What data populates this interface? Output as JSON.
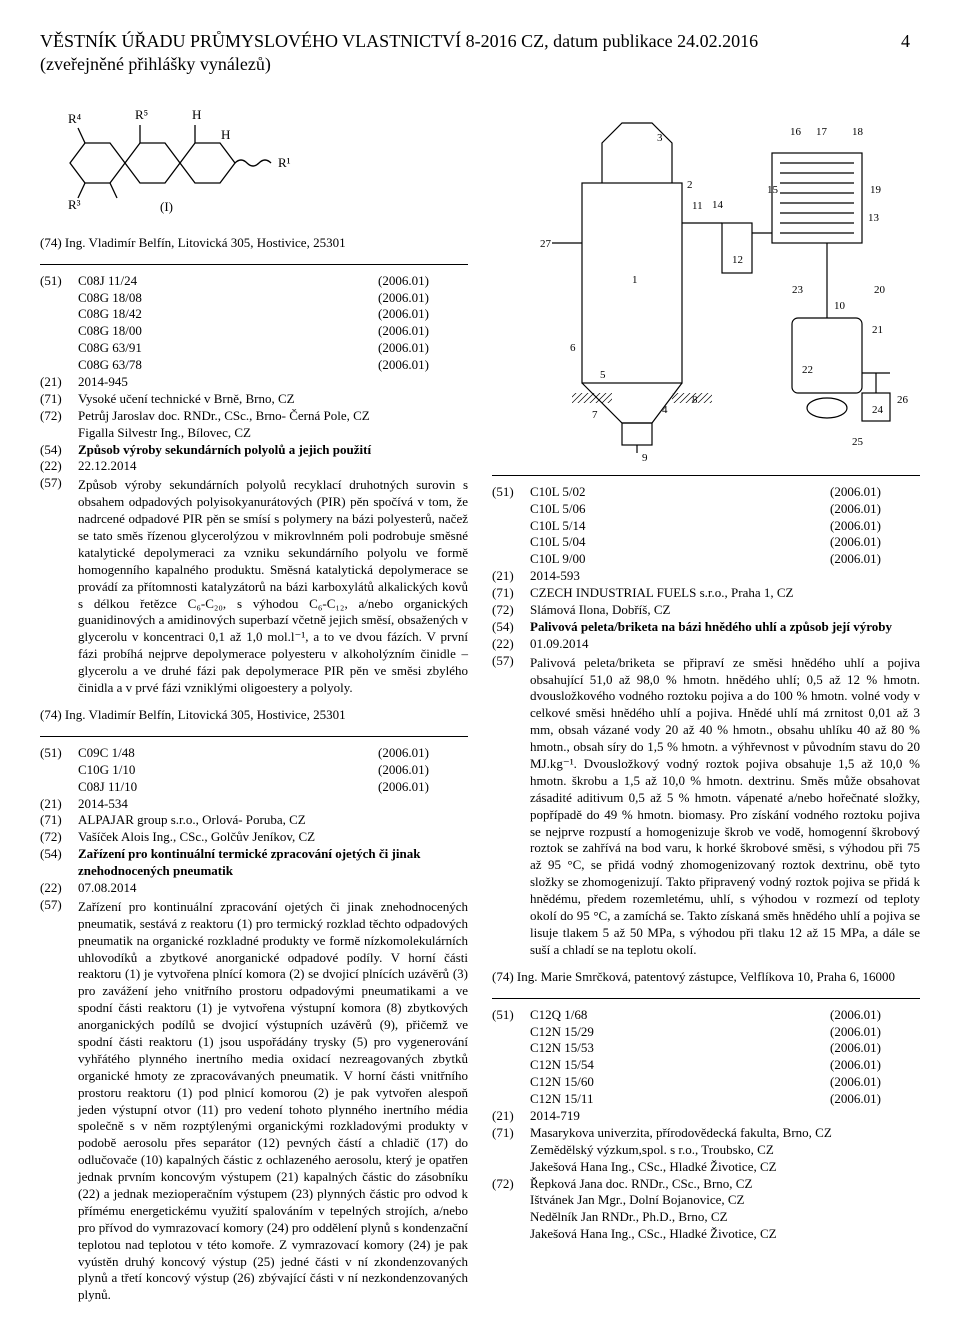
{
  "header": {
    "line1": "VĚSTNÍK ÚŘADU PRŮMYSLOVÉHO VLASTNICTVÍ 8-2016 CZ, datum publikace 24.02.2016",
    "line2": "(zveřejněné přihlášky vynálezů)",
    "page": "4"
  },
  "chemical_figure": {
    "labels": [
      "R⁵",
      "H",
      "H",
      "R¹",
      "R³",
      "R⁴",
      "(I)"
    ]
  },
  "left": {
    "repr_top": "(74)   Ing. Vladimír Belfín, Litovická 305, Hostivice, 25301",
    "entry1": {
      "codes": [
        {
          "tag": "(51)",
          "label": "C08J 11/24",
          "sub": "(2006.01)"
        },
        {
          "tag": "",
          "label": "C08G 18/08",
          "sub": "(2006.01)"
        },
        {
          "tag": "",
          "label": "C08G 18/42",
          "sub": "(2006.01)"
        },
        {
          "tag": "",
          "label": "C08G 18/00",
          "sub": "(2006.01)"
        },
        {
          "tag": "",
          "label": "C08G 63/91",
          "sub": "(2006.01)"
        },
        {
          "tag": "",
          "label": "C08G 63/78",
          "sub": "(2006.01)"
        }
      ],
      "app": {
        "tag": "(21)",
        "val": "2014-945"
      },
      "applicant": {
        "tag": "(71)",
        "val": "Vysoké učení technické v Brně, Brno, CZ"
      },
      "inventors": [
        {
          "tag": "(72)",
          "val": "Petrůj Jaroslav doc. RNDr., CSc., Brno- Černá Pole, CZ"
        },
        {
          "tag": "",
          "val": "Figalla Silvestr Ing., Bílovec, CZ"
        }
      ],
      "title": {
        "tag": "(54)",
        "val": "Způsob výroby sekundárních polyolů a jejich použití"
      },
      "date": {
        "tag": "(22)",
        "val": "22.12.2014"
      },
      "abstract": {
        "tag": "(57)",
        "val": "Způsob výroby sekundárních polyolů recyklací druhotných surovin s obsahem odpadových polyisokyanurátových (PIR) pěn spočívá v tom, že nadrcené odpadové PIR pěn se smísí s polymery na bázi polyesterů, načež se tato směs řízenou glycerolýzou v mikrovlnném poli podrobuje směsné katalytické depolymeraci za vzniku sekundárního polyolu ve formě homogenního kapalného produktu. Směsná katalytická depolymerace se provádí za přítomnosti katalyzátorů na bázi karboxylátů alkalických kovů s délkou řetězce C₆-C₂₀, s výhodou C₆-C₁₂, a/nebo organických guanidinových a amidinových superbazí včetně jejich směsí, obsažených v glycerolu v koncentraci 0,1 až 1,0 mol.l⁻¹, a to ve dvou fázích. V první fázi probíhá nejprve depolymerace polyesteru v alkoholýzním činidle – glycerolu a ve druhé fázi pak depolymerace PIR pěn ve směsi zbylého činidla a v prvé fázi vzniklými oligoestery a polyoly."
      },
      "repr": "(74)   Ing. Vladimír Belfín, Litovická 305, Hostivice, 25301"
    },
    "entry2": {
      "codes": [
        {
          "tag": "(51)",
          "label": "C09C 1/48",
          "sub": "(2006.01)"
        },
        {
          "tag": "",
          "label": "C10G 1/10",
          "sub": "(2006.01)"
        },
        {
          "tag": "",
          "label": "C08J 11/10",
          "sub": "(2006.01)"
        }
      ],
      "app": {
        "tag": "(21)",
        "val": "2014-534"
      },
      "applicant": {
        "tag": "(71)",
        "val": "ALPAJAR group s.r.o., Orlová- Poruba, CZ"
      },
      "inventors": [
        {
          "tag": "(72)",
          "val": "Vašíček Alois Ing., CSc., Golčův Jeníkov, CZ"
        }
      ],
      "title": {
        "tag": "(54)",
        "val": "Zařízení pro kontinuální termické zpracování ojetých či jinak znehodnocených pneumatik"
      },
      "date": {
        "tag": "(22)",
        "val": "07.08.2014"
      },
      "abstract": {
        "tag": "(57)",
        "val": "Zařízení pro kontinuální zpracování ojetých či jinak znehodnocených pneumatik, sestává z reaktoru (1) pro termický rozklad těchto odpadových pneumatik na organické rozkladné produkty ve formě nízkomolekulárních uhlovodíků a zbytkové anorganické odpadové podíly. V horní části reaktoru (1) je vytvořena plnící komora (2) se dvojicí plnících uzávěrů (3) pro zavážení jeho vnitřního prostoru odpadovými pneumatikami a ve spodní části reaktoru (1) je vytvořena výstupní komora (8) zbytkových anorganických podílů se dvojicí výstupních uzávěrů (9), přičemž ve spodní části reaktoru (1) jsou uspořádány trysky (5) pro vygenerování vyhřátého plynného inertního media oxidací nezreagovaných zbytků organické hmoty ze zpracovávaných pneumatik. V horní části vnitřního prostoru reaktoru (1) pod plnicí komorou (2) je pak vytvořen alespoň jeden výstupní otvor (11) pro vedení tohoto plynného inertního média společně s v něm rozptýlenými organickými rozkladovými produkty v podobě aerosolu přes separátor (12) pevných částí a chladič (17) do odlučovače (10) kapalných částic z ochlazeného aerosolu, který je opatřen jednak prvním koncovým výstupem (21) kapalných částic do zásobníku (22) a jednak mezioperačním výstupem (23) plynných částic pro odvod k přímému energetickému využití spalováním v tepelných strojích, a/nebo pro přívod do vymrazovací komory (24) pro oddělení plynů s kondenzační teplotou nad teplotou v této komoře. Z vymrazovací komory (24) je pak vyústěn druhý koncový výstup (25) jedné části v ní zkondenzovaných plynů a třetí koncový výstup (26) zbývající části v ní nezkondenzovaných plynů."
      }
    }
  },
  "tech_figure": {
    "labels": [
      "1",
      "2",
      "3",
      "4",
      "5",
      "6",
      "7",
      "8",
      "9",
      "10",
      "11",
      "12",
      "13",
      "14",
      "15",
      "16",
      "17",
      "18",
      "19",
      "20",
      "21",
      "22",
      "23",
      "24",
      "25",
      "26",
      "27"
    ]
  },
  "right": {
    "entry1": {
      "codes": [
        {
          "tag": "(51)",
          "label": "C10L 5/02",
          "sub": "(2006.01)"
        },
        {
          "tag": "",
          "label": "C10L 5/06",
          "sub": "(2006.01)"
        },
        {
          "tag": "",
          "label": "C10L 5/14",
          "sub": "(2006.01)"
        },
        {
          "tag": "",
          "label": "C10L 5/04",
          "sub": "(2006.01)"
        },
        {
          "tag": "",
          "label": "C10L 9/00",
          "sub": "(2006.01)"
        }
      ],
      "app": {
        "tag": "(21)",
        "val": "2014-593"
      },
      "applicant": {
        "tag": "(71)",
        "val": "CZECH INDUSTRIAL FUELS s.r.o., Praha 1, CZ"
      },
      "inventors": [
        {
          "tag": "(72)",
          "val": "Slámová Ilona, Dobříš, CZ"
        }
      ],
      "title": {
        "tag": "(54)",
        "val": "Palivová peleta/briketa na bázi hnědého uhlí a způsob její výroby"
      },
      "date": {
        "tag": "(22)",
        "val": "01.09.2014"
      },
      "abstract": {
        "tag": "(57)",
        "val": "Palivová peleta/briketa se připraví ze směsi hnědého uhlí a pojiva obsahující 51,0 až 98,0 % hmotn. hnědého uhlí; 0,5 až 12 % hmotn. dvousložkového vodného roztoku pojiva a do 100 % hmotn. volné vody v celkové směsi hnědého uhlí a pojiva. Hnědé uhlí má zrnitost 0,01 až 3 mm, obsah vázané vody 20 až 40 % hmotn., obsahu uhlíku 40 až 80 % hmotn., obsah síry do 1,5 % hmotn. a výhřevnost v původním stavu do 20 MJ.kg⁻¹. Dvousložkový vodný roztok pojiva obsahuje 1,5 až 10,0 % hmotn. škrobu a 1,5 až 10,0 % hmotn. dextrinu. Směs může obsahovat zásadité aditivum 0,5 až 5 % hmotn. vápenaté a/nebo hořečnaté složky, popřípadě do 49 % hmotn. biomasy. Pro získání vodného roztoku pojiva se nejprve rozpustí a homogenizuje škrob ve vodě, homogenní škrobový roztok se zahřívá na bod varu, k horké škrobové směsi, s výhodou při 75 až 95 °C, se přidá vodný zhomogenizovaný roztok dextrinu, obě tyto složky se zhomogenizují. Takto připravený vodný roztok pojiva se přidá k hnědému, předem rozemletému, uhlí, s výhodou v rozmezí od teploty okolí do 95 °C, a zamíchá se. Takto získaná směs hnědého uhlí a pojiva se lisuje tlakem 5 až 50 MPa, s výhodou při tlaku 12 až 15 MPa, a dále se suší a chladí se na teplotu okolí."
      },
      "repr": "(74)   Ing. Marie Smrčková, patentový zástupce, Velflíkova 10, Praha 6, 16000"
    },
    "entry2": {
      "codes": [
        {
          "tag": "(51)",
          "label": "C12Q 1/68",
          "sub": "(2006.01)"
        },
        {
          "tag": "",
          "label": "C12N 15/29",
          "sub": "(2006.01)"
        },
        {
          "tag": "",
          "label": "C12N 15/53",
          "sub": "(2006.01)"
        },
        {
          "tag": "",
          "label": "C12N 15/54",
          "sub": "(2006.01)"
        },
        {
          "tag": "",
          "label": "C12N 15/60",
          "sub": "(2006.01)"
        },
        {
          "tag": "",
          "label": "C12N 15/11",
          "sub": "(2006.01)"
        }
      ],
      "app": {
        "tag": "(21)",
        "val": "2014-719"
      },
      "applicant": {
        "tag": "(71)",
        "val": "Masarykova univerzita, přírodovědecká fakulta, Brno, CZ"
      },
      "applicant2": {
        "tag": "",
        "val": "Zemědělský výzkum,spol. s r.o., Troubsko, CZ"
      },
      "applicant3": {
        "tag": "",
        "val": "Jakešová Hana Ing., CSc., Hladké Životice, CZ"
      },
      "inventors": [
        {
          "tag": "(72)",
          "val": "Řepková Jana doc. RNDr., CSc., Brno, CZ"
        },
        {
          "tag": "",
          "val": "Ištvánek Jan Mgr., Dolní Bojanovice, CZ"
        },
        {
          "tag": "",
          "val": "Nedělník Jan RNDr., Ph.D., Brno, CZ"
        },
        {
          "tag": "",
          "val": "Jakešová Hana Ing., CSc., Hladké Životice, CZ"
        }
      ]
    }
  }
}
